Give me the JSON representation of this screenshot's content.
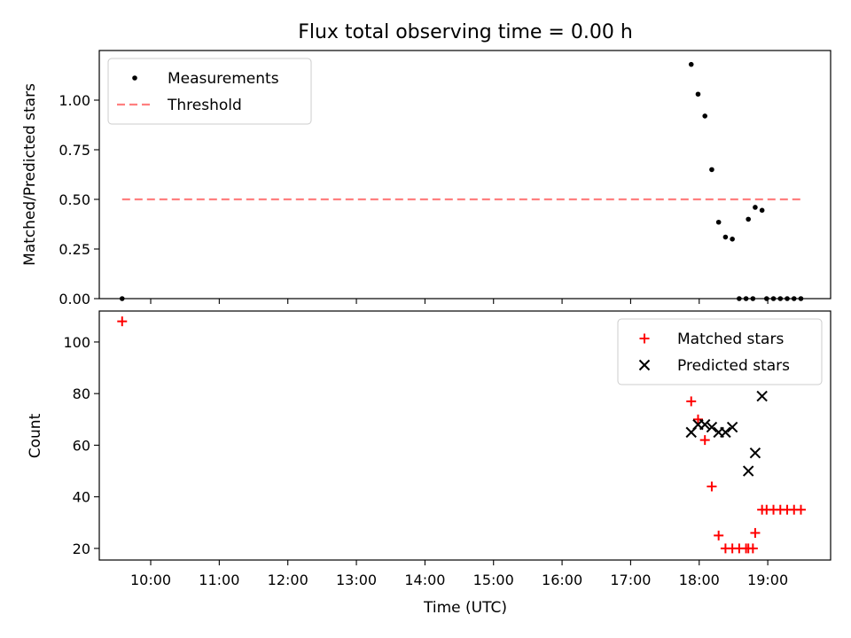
{
  "chart_data": [
    {
      "type": "scatter",
      "title": "Flux total observing time = 0.00 h",
      "xlabel": "",
      "ylabel": "Matched/Predicted stars",
      "ylim": [
        0,
        1.25
      ],
      "xlim": [
        "09:15",
        "19:55"
      ],
      "yticks": [
        "0.00",
        "0.25",
        "0.50",
        "0.75",
        "1.00"
      ],
      "ytick_values": [
        0,
        0.25,
        0.5,
        0.75,
        1.0
      ],
      "legend_position": "upper-left",
      "series": [
        {
          "name": "Measurements",
          "marker": "dot",
          "color": "#000000",
          "points": [
            [
              "09:35",
              0.0
            ],
            [
              "17:53",
              1.18
            ],
            [
              "17:59",
              1.03
            ],
            [
              "18:05",
              0.92
            ],
            [
              "18:11",
              0.65
            ],
            [
              "18:17",
              0.385
            ],
            [
              "18:23",
              0.31
            ],
            [
              "18:29",
              0.3
            ],
            [
              "18:35",
              0.0
            ],
            [
              "18:41",
              0.0
            ],
            [
              "18:47",
              0.0
            ],
            [
              "18:43",
              0.4
            ],
            [
              "18:49",
              0.46
            ],
            [
              "18:55",
              0.445
            ],
            [
              "18:59",
              0.0
            ],
            [
              "19:05",
              0.0
            ],
            [
              "19:11",
              0.0
            ],
            [
              "19:17",
              0.0
            ],
            [
              "19:23",
              0.0
            ],
            [
              "19:29",
              0.0
            ]
          ]
        },
        {
          "name": "Threshold",
          "type": "line",
          "style": "dashed",
          "color": "#ff7f7f",
          "points": [
            [
              "09:35",
              0.5
            ],
            [
              "19:29",
              0.5
            ]
          ]
        }
      ]
    },
    {
      "type": "scatter",
      "xlabel": "Time (UTC)",
      "ylabel": "Count",
      "ylim": [
        15.5,
        112
      ],
      "xlim": [
        "09:15",
        "19:55"
      ],
      "yticks": [
        "20",
        "40",
        "60",
        "80",
        "100"
      ],
      "ytick_values": [
        20,
        40,
        60,
        80,
        100
      ],
      "xticks": [
        "10:00",
        "11:00",
        "12:00",
        "13:00",
        "14:00",
        "15:00",
        "16:00",
        "17:00",
        "18:00",
        "19:00"
      ],
      "legend_position": "upper-right",
      "series": [
        {
          "name": "Matched stars",
          "marker": "plus",
          "color": "#ff0000",
          "points": [
            [
              "09:35",
              108
            ],
            [
              "17:53",
              77
            ],
            [
              "17:59",
              70
            ],
            [
              "18:05",
              62
            ],
            [
              "18:11",
              44
            ],
            [
              "18:17",
              25
            ],
            [
              "18:23",
              20
            ],
            [
              "18:29",
              20
            ],
            [
              "18:35",
              20
            ],
            [
              "18:41",
              20
            ],
            [
              "18:47",
              20
            ],
            [
              "18:43",
              20
            ],
            [
              "18:49",
              26
            ],
            [
              "18:55",
              35
            ],
            [
              "18:59",
              35
            ],
            [
              "19:05",
              35
            ],
            [
              "19:11",
              35
            ],
            [
              "19:17",
              35
            ],
            [
              "19:23",
              35
            ],
            [
              "19:29",
              35
            ]
          ]
        },
        {
          "name": "Predicted stars",
          "marker": "x",
          "color": "#000000",
          "points": [
            [
              "17:53",
              65
            ],
            [
              "17:59",
              68
            ],
            [
              "18:05",
              68
            ],
            [
              "18:11",
              67
            ],
            [
              "18:17",
              65
            ],
            [
              "18:23",
              65
            ],
            [
              "18:29",
              67
            ],
            [
              "18:43",
              50
            ],
            [
              "18:49",
              57
            ],
            [
              "18:55",
              79
            ]
          ]
        }
      ]
    }
  ]
}
